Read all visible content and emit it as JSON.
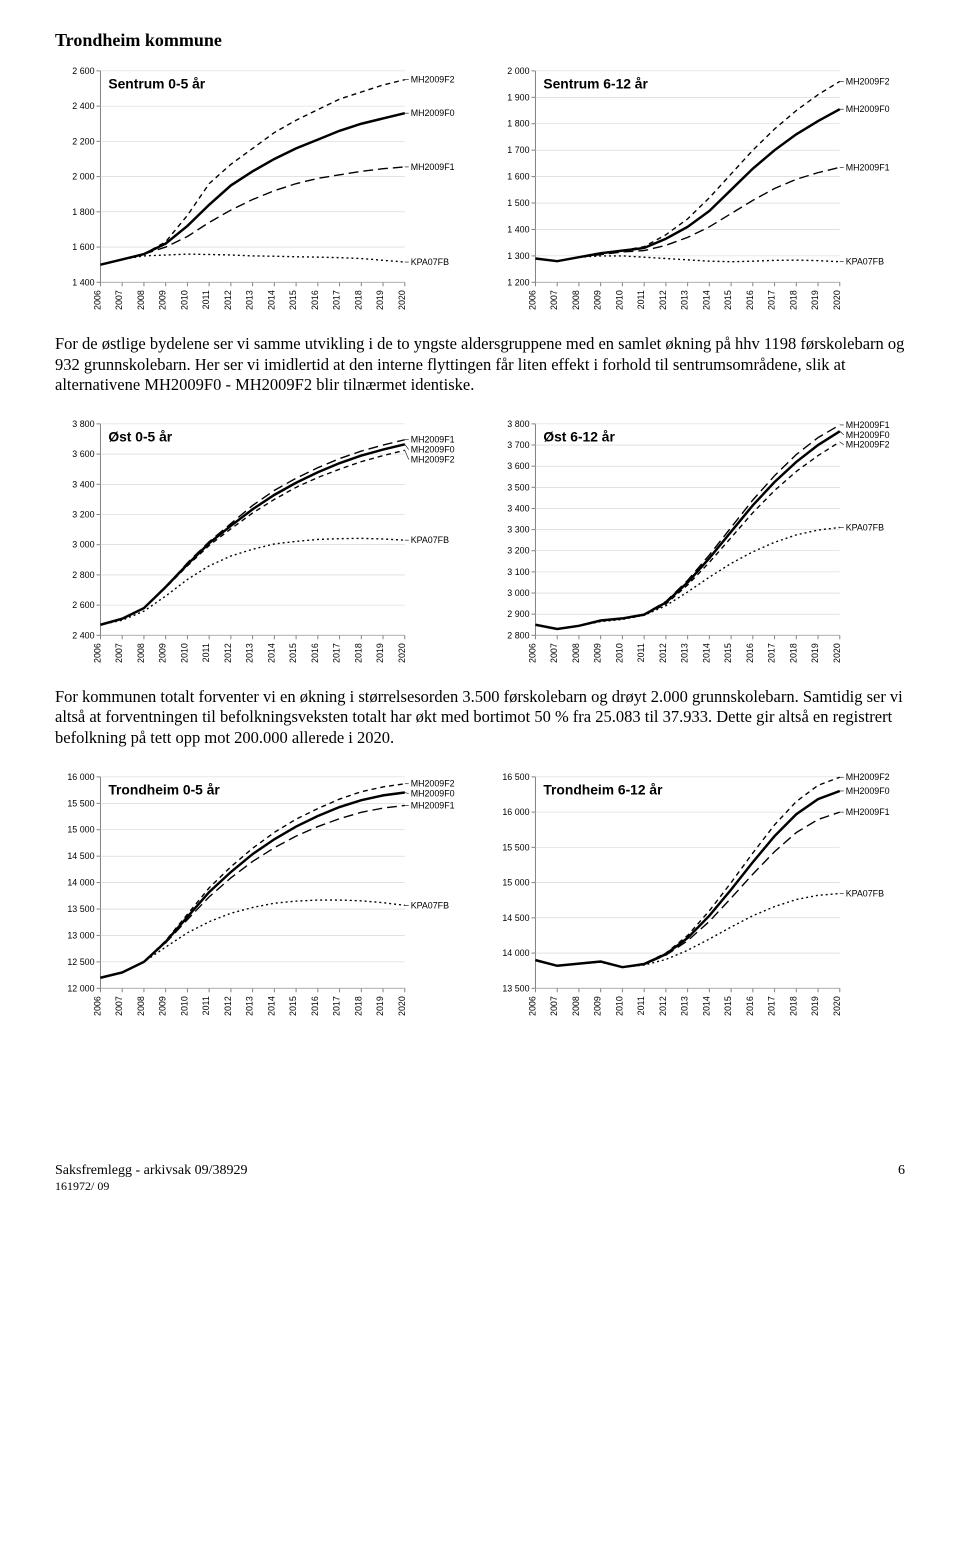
{
  "doc": {
    "title": "Trondheim kommune",
    "para1": "For de østlige bydelene ser vi samme utvikling i de to yngste aldersgruppene med en samlet økning på hhv 1198 førskolebarn og 932 grunnskolebarn. Her ser vi imidlertid at den interne flyttingen får liten effekt i forhold til sentrumsområdene, slik at alternativene MH2009F0 - MH2009F2 blir tilnærmet identiske.",
    "para2": "For kommunen totalt forventer vi en økning i størrelsesorden 3.500 førskolebarn og drøyt 2.000 grunnskolebarn. Samtidig ser vi altså at forventningen til befolkningsveksten totalt har økt med bortimot 50 % fra 25.083 til 37.933. Dette gir altså en registrert befolkning på tett opp mot 200.000 allerede i 2020.",
    "footer_left": "Saksfremlegg - arkivsak  09/38929",
    "footer_page": "6",
    "footer_sub": "161972/ 09"
  },
  "shared": {
    "x_categories": [
      "2006",
      "2007",
      "2008",
      "2009",
      "2010",
      "2011",
      "2012",
      "2013",
      "2014",
      "2015",
      "2016",
      "2017",
      "2018",
      "2019",
      "2020"
    ],
    "axis_color": "#808080",
    "grid_color": "#d0d0d0",
    "line_color": "#000000",
    "background": "#ffffff",
    "title_fontsize": 14,
    "label_fontsize": 9,
    "line_width_main": 2.5,
    "line_width_thin": 1.4,
    "dash_short": "5,4",
    "dash_dot": "2,3",
    "dash_longdash": "10,5"
  },
  "charts": {
    "sentrum_05": {
      "title": "Sentrum 0-5 år",
      "ylim": [
        1400,
        2600
      ],
      "ytick_step": 200,
      "series": [
        {
          "name": "MH2009F2",
          "style": "dash",
          "label_pos": "top",
          "data": [
            1500,
            1530,
            1560,
            1630,
            1780,
            1960,
            2070,
            2160,
            2250,
            2320,
            2380,
            2440,
            2480,
            2520,
            2550
          ]
        },
        {
          "name": "MH2009F0",
          "style": "solid",
          "label_pos": "mid",
          "data": [
            1500,
            1530,
            1560,
            1620,
            1720,
            1840,
            1950,
            2030,
            2100,
            2160,
            2210,
            2260,
            2300,
            2330,
            2360
          ]
        },
        {
          "name": "MH2009F1",
          "style": "longdash",
          "label_pos": "low",
          "data": [
            1500,
            1530,
            1560,
            1600,
            1660,
            1740,
            1810,
            1870,
            1920,
            1960,
            1990,
            2010,
            2030,
            2045,
            2055
          ]
        },
        {
          "name": "KPA07FB",
          "style": "dot",
          "label_pos": "bottom",
          "data": [
            1500,
            1530,
            1550,
            1555,
            1560,
            1558,
            1555,
            1550,
            1548,
            1545,
            1543,
            1540,
            1535,
            1525,
            1515
          ]
        }
      ]
    },
    "sentrum_612": {
      "title": "Sentrum 6-12 år",
      "ylim": [
        1200,
        2000
      ],
      "ytick_step": 100,
      "series": [
        {
          "name": "MH2009F2",
          "style": "dash",
          "label_pos": "top",
          "data": [
            1290,
            1280,
            1295,
            1310,
            1320,
            1335,
            1380,
            1440,
            1520,
            1610,
            1700,
            1780,
            1850,
            1910,
            1960
          ]
        },
        {
          "name": "MH2009F0",
          "style": "solid",
          "label_pos": "mid",
          "data": [
            1290,
            1280,
            1295,
            1310,
            1320,
            1330,
            1365,
            1410,
            1470,
            1550,
            1630,
            1700,
            1760,
            1810,
            1855
          ]
        },
        {
          "name": "MH2009F1",
          "style": "longdash",
          "label_pos": "low",
          "data": [
            1290,
            1280,
            1295,
            1305,
            1315,
            1320,
            1340,
            1370,
            1410,
            1460,
            1510,
            1555,
            1590,
            1615,
            1635
          ]
        },
        {
          "name": "KPA07FB",
          "style": "dot",
          "label_pos": "bottom",
          "data": [
            1290,
            1280,
            1295,
            1300,
            1300,
            1295,
            1290,
            1285,
            1280,
            1278,
            1280,
            1283,
            1284,
            1282,
            1278
          ]
        }
      ]
    },
    "ost_05": {
      "title": "Øst 0-5 år",
      "ylim": [
        2400,
        3800
      ],
      "ytick_step": 200,
      "series": [
        {
          "name": "MH2009F1",
          "style": "longdash",
          "label_pos": "top",
          "data": [
            2470,
            2510,
            2580,
            2720,
            2880,
            3020,
            3140,
            3260,
            3360,
            3440,
            3510,
            3570,
            3620,
            3660,
            3695
          ]
        },
        {
          "name": "MH2009F0",
          "style": "solid",
          "label_pos": "mid",
          "data": [
            2470,
            2510,
            2580,
            2720,
            2870,
            3010,
            3125,
            3235,
            3330,
            3410,
            3480,
            3540,
            3590,
            3630,
            3665
          ]
        },
        {
          "name": "MH2009F2",
          "style": "dash",
          "label_pos": "low",
          "data": [
            2470,
            2510,
            2580,
            2715,
            2860,
            2995,
            3105,
            3210,
            3300,
            3380,
            3445,
            3500,
            3550,
            3590,
            3625
          ]
        },
        {
          "name": "KPA07FB",
          "style": "dot",
          "label_pos": "bottom",
          "data": [
            2470,
            2500,
            2560,
            2660,
            2770,
            2860,
            2925,
            2970,
            3005,
            3022,
            3035,
            3040,
            3042,
            3038,
            3030
          ]
        }
      ]
    },
    "ost_612": {
      "title": "Øst 6-12 år",
      "ylim": [
        2800,
        3800
      ],
      "ytick_step": 100,
      "series": [
        {
          "name": "MH2009F1",
          "style": "longdash",
          "label_pos": "top",
          "data": [
            2850,
            2830,
            2845,
            2870,
            2880,
            2900,
            2960,
            3060,
            3180,
            3310,
            3440,
            3555,
            3655,
            3735,
            3795
          ]
        },
        {
          "name": "MH2009F0",
          "style": "solid",
          "label_pos": "mid",
          "data": [
            2850,
            2830,
            2845,
            2870,
            2880,
            2898,
            2955,
            3050,
            3165,
            3290,
            3415,
            3525,
            3620,
            3700,
            3765
          ]
        },
        {
          "name": "MH2009F2",
          "style": "dash",
          "label_pos": "low",
          "data": [
            2850,
            2830,
            2845,
            2870,
            2878,
            2895,
            2948,
            3038,
            3145,
            3262,
            3380,
            3485,
            3575,
            3650,
            3715
          ]
        },
        {
          "name": "KPA07FB",
          "style": "dot",
          "label_pos": "bottom",
          "data": [
            2850,
            2830,
            2845,
            2865,
            2875,
            2895,
            2940,
            3005,
            3075,
            3140,
            3195,
            3240,
            3275,
            3298,
            3310
          ]
        }
      ]
    },
    "trh_05": {
      "title": "Trondheim 0-5 år",
      "ylim": [
        12000,
        16000
      ],
      "ytick_step": 500,
      "series": [
        {
          "name": "MH2009F2",
          "style": "dash",
          "label_pos": "top",
          "data": [
            12200,
            12300,
            12500,
            12900,
            13400,
            13900,
            14300,
            14650,
            14950,
            15200,
            15400,
            15580,
            15720,
            15810,
            15870
          ]
        },
        {
          "name": "MH2009F0",
          "style": "solid",
          "label_pos": "mid",
          "data": [
            12200,
            12300,
            12500,
            12880,
            13350,
            13820,
            14200,
            14540,
            14820,
            15060,
            15260,
            15430,
            15560,
            15650,
            15705
          ]
        },
        {
          "name": "MH2009F1",
          "style": "longdash",
          "label_pos": "low",
          "data": [
            12200,
            12300,
            12500,
            12860,
            13300,
            13730,
            14090,
            14400,
            14660,
            14880,
            15060,
            15210,
            15330,
            15410,
            15460
          ]
        },
        {
          "name": "KPA07FB",
          "style": "dot",
          "label_pos": "bottom",
          "data": [
            12200,
            12300,
            12500,
            12780,
            13050,
            13260,
            13420,
            13530,
            13610,
            13650,
            13670,
            13670,
            13655,
            13620,
            13570
          ]
        }
      ]
    },
    "trh_612": {
      "title": "Trondheim 6-12 år",
      "ylim": [
        13500,
        16500
      ],
      "ytick_step": 500,
      "series": [
        {
          "name": "MH2009F2",
          "style": "dash",
          "label_pos": "top",
          "data": [
            13900,
            13820,
            13850,
            13880,
            13800,
            13850,
            14000,
            14250,
            14600,
            15000,
            15420,
            15820,
            16150,
            16380,
            16495
          ]
        },
        {
          "name": "MH2009F0",
          "style": "solid",
          "label_pos": "mid",
          "data": [
            13900,
            13820,
            13850,
            13880,
            13800,
            13845,
            13985,
            14215,
            14530,
            14900,
            15290,
            15660,
            15970,
            16185,
            16300
          ]
        },
        {
          "name": "MH2009F1",
          "style": "longdash",
          "label_pos": "low",
          "data": [
            13900,
            13820,
            13850,
            13880,
            13800,
            13840,
            13970,
            14175,
            14450,
            14780,
            15120,
            15440,
            15710,
            15895,
            16000
          ]
        },
        {
          "name": "KPA07FB",
          "style": "dot",
          "label_pos": "bottom",
          "data": [
            13900,
            13820,
            13850,
            13870,
            13800,
            13830,
            13910,
            14040,
            14200,
            14370,
            14530,
            14660,
            14760,
            14820,
            14845
          ]
        }
      ]
    }
  }
}
